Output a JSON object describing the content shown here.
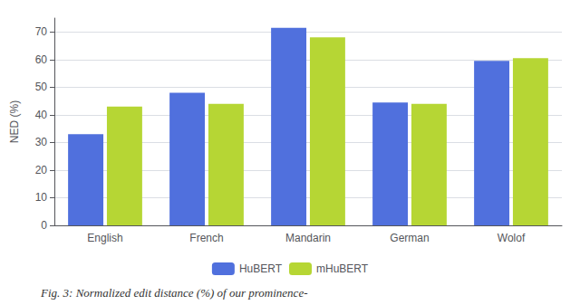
{
  "chart_data": {
    "type": "bar",
    "categories": [
      "English",
      "French",
      "Mandarin",
      "German",
      "Wolof"
    ],
    "series": [
      {
        "name": "HuBERT",
        "values": [
          33.0,
          48.0,
          71.5,
          44.5,
          59.5
        ]
      },
      {
        "name": "mHuBERT",
        "values": [
          43.0,
          44.0,
          68.0,
          44.0,
          60.5
        ]
      }
    ],
    "ylabel": "NED (%)",
    "ylim": [
      0,
      75
    ],
    "yticks": [
      0,
      10,
      20,
      30,
      40,
      50,
      60,
      70
    ],
    "grid": true,
    "legend": "bottom",
    "caption": "Fig. 3: Normalized edit distance (%) of our prominence-"
  }
}
